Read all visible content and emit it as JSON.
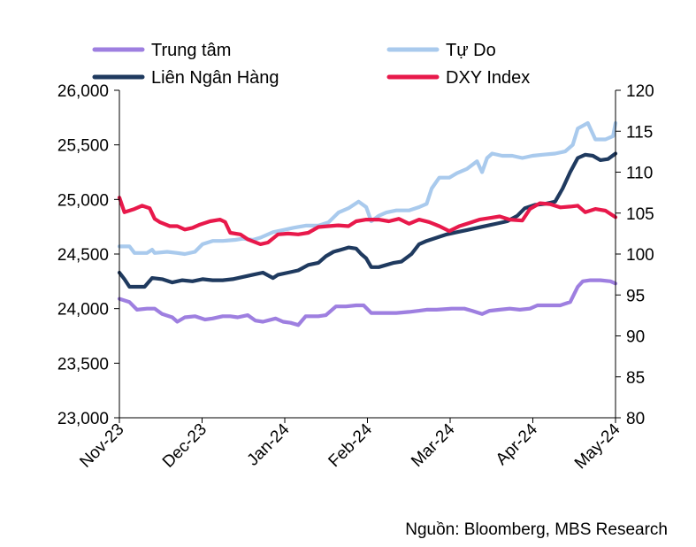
{
  "chart_data": {
    "type": "line",
    "x_ticks": [
      "Nov-23",
      "Dec-23",
      "Jan-24",
      "Feb-24",
      "Mar-24",
      "Apr-24",
      "May-24"
    ],
    "y_left": {
      "ticks": [
        "23,000",
        "23,500",
        "24,000",
        "24,500",
        "25,000",
        "25,500",
        "26,000"
      ],
      "min": 23000,
      "max": 26000
    },
    "y_right": {
      "ticks": [
        "80",
        "85",
        "90",
        "95",
        "100",
        "105",
        "110",
        "115",
        "120"
      ],
      "min": 80,
      "max": 120
    },
    "legend_position": "top",
    "grid": false,
    "series": [
      {
        "name": "Trung tâm",
        "color": "#9E7FE0",
        "axis": "left",
        "points": [
          [
            "2023-11-01",
            24090
          ],
          [
            "2023-11-05",
            24060
          ],
          [
            "2023-11-08",
            23990
          ],
          [
            "2023-11-12",
            24000
          ],
          [
            "2023-11-15",
            24000
          ],
          [
            "2023-11-18",
            23950
          ],
          [
            "2023-11-22",
            23920
          ],
          [
            "2023-11-24",
            23880
          ],
          [
            "2023-11-27",
            23920
          ],
          [
            "2023-12-01",
            23930
          ],
          [
            "2023-12-05",
            23900
          ],
          [
            "2023-12-08",
            23910
          ],
          [
            "2023-12-12",
            23930
          ],
          [
            "2023-12-15",
            23930
          ],
          [
            "2023-12-18",
            23920
          ],
          [
            "2023-12-22",
            23940
          ],
          [
            "2023-12-25",
            23890
          ],
          [
            "2023-12-28",
            23880
          ],
          [
            "2024-01-02",
            23910
          ],
          [
            "2024-01-05",
            23880
          ],
          [
            "2024-01-08",
            23870
          ],
          [
            "2024-01-11",
            23850
          ],
          [
            "2024-01-14",
            23930
          ],
          [
            "2024-01-19",
            23930
          ],
          [
            "2024-01-22",
            23940
          ],
          [
            "2024-01-26",
            24020
          ],
          [
            "2024-01-30",
            24020
          ],
          [
            "2024-02-03",
            24030
          ],
          [
            "2024-02-06",
            24030
          ],
          [
            "2024-02-09",
            23960
          ],
          [
            "2024-02-14",
            23960
          ],
          [
            "2024-02-19",
            23960
          ],
          [
            "2024-02-24",
            23970
          ],
          [
            "2024-02-28",
            23980
          ],
          [
            "2024-03-02",
            23990
          ],
          [
            "2024-03-06",
            23990
          ],
          [
            "2024-03-12",
            24000
          ],
          [
            "2024-03-17",
            24000
          ],
          [
            "2024-03-20",
            23980
          ],
          [
            "2024-03-24",
            23950
          ],
          [
            "2024-03-27",
            23980
          ],
          [
            "2024-03-31",
            23990
          ],
          [
            "2024-04-04",
            24000
          ],
          [
            "2024-04-08",
            23990
          ],
          [
            "2024-04-12",
            24000
          ],
          [
            "2024-04-15",
            24030
          ],
          [
            "2024-04-19",
            24030
          ],
          [
            "2024-04-24",
            24030
          ],
          [
            "2024-04-28",
            24060
          ],
          [
            "2024-05-01",
            24200
          ],
          [
            "2024-05-03",
            24250
          ],
          [
            "2024-05-06",
            24260
          ],
          [
            "2024-05-10",
            24260
          ],
          [
            "2024-05-14",
            24250
          ],
          [
            "2024-05-16",
            24230
          ]
        ]
      },
      {
        "name": "Tự Do",
        "color": "#A9CAED",
        "axis": "left",
        "points": [
          [
            "2023-11-01",
            24570
          ],
          [
            "2023-11-05",
            24570
          ],
          [
            "2023-11-07",
            24510
          ],
          [
            "2023-11-12",
            24510
          ],
          [
            "2023-11-14",
            24540
          ],
          [
            "2023-11-15",
            24510
          ],
          [
            "2023-11-20",
            24520
          ],
          [
            "2023-11-24",
            24510
          ],
          [
            "2023-11-27",
            24500
          ],
          [
            "2023-12-01",
            24520
          ],
          [
            "2023-12-04",
            24590
          ],
          [
            "2023-12-08",
            24620
          ],
          [
            "2023-12-12",
            24620
          ],
          [
            "2023-12-17",
            24630
          ],
          [
            "2023-12-20",
            24640
          ],
          [
            "2023-12-24",
            24630
          ],
          [
            "2023-12-27",
            24650
          ],
          [
            "2024-01-01",
            24700
          ],
          [
            "2024-01-05",
            24720
          ],
          [
            "2024-01-09",
            24740
          ],
          [
            "2024-01-14",
            24760
          ],
          [
            "2024-01-19",
            24760
          ],
          [
            "2024-01-23",
            24790
          ],
          [
            "2024-01-27",
            24880
          ],
          [
            "2024-01-31",
            24920
          ],
          [
            "2024-02-04",
            24980
          ],
          [
            "2024-02-07",
            24930
          ],
          [
            "2024-02-09",
            24800
          ],
          [
            "2024-02-12",
            24850
          ],
          [
            "2024-02-15",
            24880
          ],
          [
            "2024-02-19",
            24900
          ],
          [
            "2024-02-24",
            24900
          ],
          [
            "2024-02-28",
            24930
          ],
          [
            "2024-03-02",
            24960
          ],
          [
            "2024-03-04",
            25100
          ],
          [
            "2024-03-07",
            25200
          ],
          [
            "2024-03-11",
            25200
          ],
          [
            "2024-03-14",
            25240
          ],
          [
            "2024-03-18",
            25280
          ],
          [
            "2024-03-22",
            25350
          ],
          [
            "2024-03-24",
            25250
          ],
          [
            "2024-03-26",
            25380
          ],
          [
            "2024-03-28",
            25420
          ],
          [
            "2024-04-01",
            25400
          ],
          [
            "2024-04-05",
            25400
          ],
          [
            "2024-04-09",
            25380
          ],
          [
            "2024-04-13",
            25400
          ],
          [
            "2024-04-17",
            25410
          ],
          [
            "2024-04-22",
            25420
          ],
          [
            "2024-04-26",
            25440
          ],
          [
            "2024-04-29",
            25500
          ],
          [
            "2024-05-01",
            25650
          ],
          [
            "2024-05-05",
            25700
          ],
          [
            "2024-05-08",
            25550
          ],
          [
            "2024-05-12",
            25550
          ],
          [
            "2024-05-15",
            25580
          ],
          [
            "2024-05-16",
            25700
          ]
        ]
      },
      {
        "name": "Liên Ngân Hàng",
        "color": "#1F3A5F",
        "axis": "left",
        "points": [
          [
            "2023-11-01",
            24330
          ],
          [
            "2023-11-03",
            24270
          ],
          [
            "2023-11-05",
            24200
          ],
          [
            "2023-11-08",
            24200
          ],
          [
            "2023-11-11",
            24200
          ],
          [
            "2023-11-14",
            24280
          ],
          [
            "2023-11-18",
            24270
          ],
          [
            "2023-11-22",
            24240
          ],
          [
            "2023-11-26",
            24260
          ],
          [
            "2023-11-30",
            24250
          ],
          [
            "2023-12-04",
            24270
          ],
          [
            "2023-12-08",
            24260
          ],
          [
            "2023-12-12",
            24260
          ],
          [
            "2023-12-16",
            24270
          ],
          [
            "2023-12-20",
            24290
          ],
          [
            "2023-12-24",
            24310
          ],
          [
            "2023-12-28",
            24330
          ],
          [
            "2024-01-01",
            24280
          ],
          [
            "2024-01-03",
            24310
          ],
          [
            "2024-01-07",
            24330
          ],
          [
            "2024-01-11",
            24350
          ],
          [
            "2024-01-15",
            24400
          ],
          [
            "2024-01-19",
            24420
          ],
          [
            "2024-01-22",
            24480
          ],
          [
            "2024-01-25",
            24520
          ],
          [
            "2024-01-28",
            24540
          ],
          [
            "2024-01-31",
            24560
          ],
          [
            "2024-02-03",
            24550
          ],
          [
            "2024-02-05",
            24500
          ],
          [
            "2024-02-07",
            24460
          ],
          [
            "2024-02-09",
            24380
          ],
          [
            "2024-02-12",
            24380
          ],
          [
            "2024-02-15",
            24400
          ],
          [
            "2024-02-18",
            24420
          ],
          [
            "2024-02-21",
            24430
          ],
          [
            "2024-02-25",
            24500
          ],
          [
            "2024-02-28",
            24590
          ],
          [
            "2024-03-02",
            24620
          ],
          [
            "2024-03-06",
            24650
          ],
          [
            "2024-03-10",
            24680
          ],
          [
            "2024-03-14",
            24700
          ],
          [
            "2024-03-18",
            24720
          ],
          [
            "2024-03-22",
            24740
          ],
          [
            "2024-03-26",
            24760
          ],
          [
            "2024-03-30",
            24780
          ],
          [
            "2024-04-03",
            24800
          ],
          [
            "2024-04-07",
            24850
          ],
          [
            "2024-04-10",
            24920
          ],
          [
            "2024-04-14",
            24950
          ],
          [
            "2024-04-18",
            24960
          ],
          [
            "2024-04-22",
            24980
          ],
          [
            "2024-04-25",
            25100
          ],
          [
            "2024-04-28",
            25250
          ],
          [
            "2024-05-01",
            25380
          ],
          [
            "2024-05-04",
            25410
          ],
          [
            "2024-05-07",
            25400
          ],
          [
            "2024-05-10",
            25360
          ],
          [
            "2024-05-13",
            25370
          ],
          [
            "2024-05-16",
            25420
          ]
        ]
      },
      {
        "name": "DXY Index",
        "color": "#E8194B",
        "axis": "right",
        "points": [
          [
            "2023-11-01",
            106.9
          ],
          [
            "2023-11-03",
            105.1
          ],
          [
            "2023-11-07",
            105.5
          ],
          [
            "2023-11-10",
            105.9
          ],
          [
            "2023-11-13",
            105.6
          ],
          [
            "2023-11-15",
            104.3
          ],
          [
            "2023-11-17",
            103.9
          ],
          [
            "2023-11-21",
            103.4
          ],
          [
            "2023-11-24",
            103.4
          ],
          [
            "2023-11-27",
            103.0
          ],
          [
            "2023-11-30",
            103.2
          ],
          [
            "2023-12-03",
            103.6
          ],
          [
            "2023-12-07",
            104.0
          ],
          [
            "2023-12-11",
            104.2
          ],
          [
            "2023-12-13",
            103.9
          ],
          [
            "2023-12-15",
            102.6
          ],
          [
            "2023-12-19",
            102.4
          ],
          [
            "2023-12-22",
            101.8
          ],
          [
            "2023-12-27",
            101.2
          ],
          [
            "2023-12-30",
            101.4
          ],
          [
            "2024-01-03",
            102.4
          ],
          [
            "2024-01-07",
            102.5
          ],
          [
            "2024-01-11",
            102.4
          ],
          [
            "2024-01-15",
            102.6
          ],
          [
            "2024-01-19",
            103.3
          ],
          [
            "2024-01-23",
            103.4
          ],
          [
            "2024-01-27",
            103.5
          ],
          [
            "2024-01-31",
            103.4
          ],
          [
            "2024-02-03",
            104.0
          ],
          [
            "2024-02-07",
            104.2
          ],
          [
            "2024-02-12",
            104.2
          ],
          [
            "2024-02-16",
            104.0
          ],
          [
            "2024-02-20",
            104.3
          ],
          [
            "2024-02-24",
            103.7
          ],
          [
            "2024-02-28",
            104.2
          ],
          [
            "2024-03-03",
            103.9
          ],
          [
            "2024-03-07",
            103.4
          ],
          [
            "2024-03-11",
            102.8
          ],
          [
            "2024-03-15",
            103.4
          ],
          [
            "2024-03-19",
            103.8
          ],
          [
            "2024-03-23",
            104.2
          ],
          [
            "2024-03-27",
            104.4
          ],
          [
            "2024-03-31",
            104.6
          ],
          [
            "2024-04-04",
            104.2
          ],
          [
            "2024-04-09",
            104.1
          ],
          [
            "2024-04-12",
            105.5
          ],
          [
            "2024-04-16",
            106.2
          ],
          [
            "2024-04-20",
            106.1
          ],
          [
            "2024-04-24",
            105.7
          ],
          [
            "2024-04-28",
            105.8
          ],
          [
            "2024-05-01",
            105.9
          ],
          [
            "2024-05-04",
            105.1
          ],
          [
            "2024-05-08",
            105.5
          ],
          [
            "2024-05-12",
            105.3
          ],
          [
            "2024-05-16",
            104.5
          ]
        ]
      }
    ]
  },
  "footer": {
    "source": "Nguồn: Bloomberg, MBS Research"
  }
}
